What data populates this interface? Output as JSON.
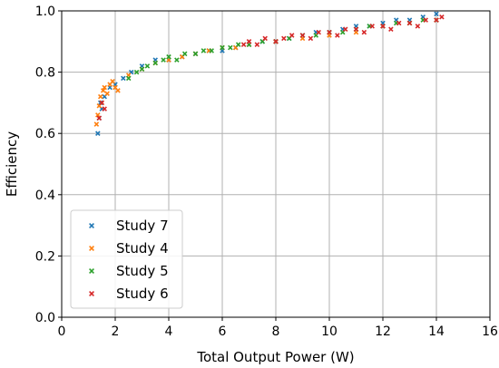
{
  "chart_data": {
    "type": "scatter",
    "xlabel": "Total Output Power (W)",
    "ylabel": "Efficiency",
    "xlim": [
      0,
      16
    ],
    "ylim": [
      0.0,
      1.0
    ],
    "x_ticks": [
      0,
      2,
      4,
      6,
      8,
      10,
      12,
      14,
      16
    ],
    "y_ticks": [
      0.0,
      0.2,
      0.4,
      0.6,
      0.8,
      1.0
    ],
    "x_tick_labels": [
      "0",
      "2",
      "4",
      "6",
      "8",
      "10",
      "12",
      "14",
      "16"
    ],
    "y_tick_labels": [
      "0.0",
      "0.2",
      "0.4",
      "0.6",
      "0.8",
      "1.0"
    ],
    "grid": true,
    "legend_position": "bottom-left",
    "marker": "x",
    "series": [
      {
        "name": "Study 7",
        "color": "#1f77b4",
        "x": [
          1.35,
          1.4,
          1.45,
          1.5,
          1.6,
          1.8,
          2.0,
          2.3,
          2.6,
          3.0,
          3.5,
          4.0,
          4.5,
          5.0,
          5.5,
          6.0,
          6.5,
          7.0,
          7.5,
          8.0,
          8.5,
          9.0,
          9.5,
          10.0,
          10.5,
          11.0,
          11.5,
          12.0,
          12.5,
          13.0,
          13.5,
          14.0
        ],
        "y": [
          0.6,
          0.65,
          0.7,
          0.68,
          0.72,
          0.75,
          0.76,
          0.78,
          0.8,
          0.82,
          0.84,
          0.84,
          0.85,
          0.86,
          0.87,
          0.87,
          0.88,
          0.89,
          0.9,
          0.9,
          0.91,
          0.92,
          0.93,
          0.93,
          0.94,
          0.95,
          0.95,
          0.96,
          0.97,
          0.97,
          0.98,
          0.99
        ]
      },
      {
        "name": "Study 4",
        "color": "#ff7f0e",
        "x": [
          1.3,
          1.35,
          1.4,
          1.45,
          1.5,
          1.55,
          1.6,
          1.7,
          1.8,
          1.9,
          2.0,
          2.1,
          2.5,
          3.0,
          3.5,
          4.0,
          4.5,
          5.0,
          5.5,
          6.0,
          6.5,
          7.0,
          8.0,
          9.0,
          10.0,
          11.0,
          12.0,
          13.0,
          14.0
        ],
        "y": [
          0.63,
          0.66,
          0.69,
          0.72,
          0.7,
          0.74,
          0.75,
          0.73,
          0.76,
          0.77,
          0.75,
          0.74,
          0.79,
          0.81,
          0.83,
          0.84,
          0.85,
          0.86,
          0.87,
          0.88,
          0.88,
          0.89,
          0.9,
          0.91,
          0.92,
          0.93,
          0.95,
          0.96,
          0.97
        ]
      },
      {
        "name": "Study 5",
        "color": "#2ca02c",
        "x": [
          2.5,
          2.8,
          3.0,
          3.2,
          3.5,
          3.8,
          4.0,
          4.3,
          4.6,
          5.0,
          5.3,
          5.6,
          6.0,
          6.3,
          6.6,
          7.0,
          7.5,
          8.0,
          8.5,
          9.0,
          9.5,
          10.0,
          10.5,
          11.0,
          11.5,
          12.0,
          12.5,
          13.0,
          13.5,
          14.0
        ],
        "y": [
          0.78,
          0.8,
          0.81,
          0.82,
          0.83,
          0.84,
          0.85,
          0.84,
          0.86,
          0.86,
          0.87,
          0.87,
          0.88,
          0.88,
          0.89,
          0.89,
          0.9,
          0.9,
          0.91,
          0.92,
          0.92,
          0.93,
          0.93,
          0.94,
          0.95,
          0.95,
          0.96,
          0.96,
          0.97,
          0.97
        ]
      },
      {
        "name": "Study 6",
        "color": "#d62728",
        "x": [
          1.4,
          1.5,
          1.6,
          6.8,
          7.0,
          7.3,
          7.6,
          8.0,
          8.3,
          8.6,
          9.0,
          9.3,
          9.6,
          10.0,
          10.3,
          10.6,
          11.0,
          11.3,
          11.6,
          12.0,
          12.3,
          12.6,
          13.0,
          13.3,
          13.6,
          14.0,
          14.2
        ],
        "y": [
          0.65,
          0.7,
          0.68,
          0.89,
          0.9,
          0.89,
          0.91,
          0.9,
          0.91,
          0.92,
          0.92,
          0.91,
          0.93,
          0.93,
          0.92,
          0.94,
          0.94,
          0.93,
          0.95,
          0.95,
          0.94,
          0.96,
          0.96,
          0.95,
          0.97,
          0.97,
          0.98
        ]
      }
    ]
  }
}
